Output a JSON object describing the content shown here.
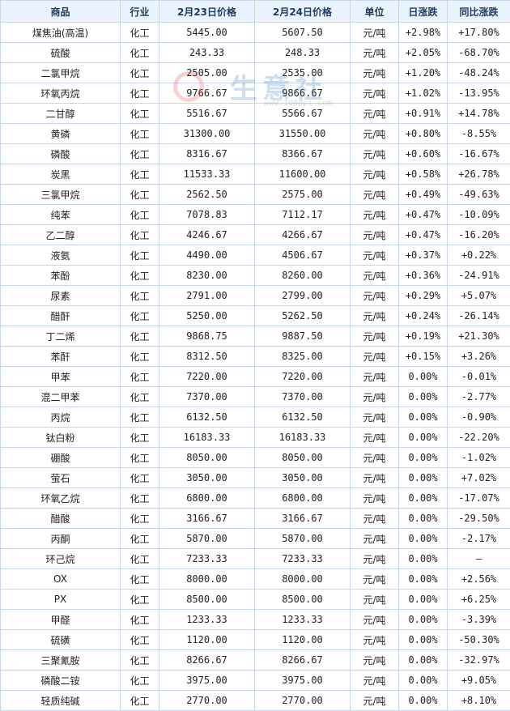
{
  "headers": {
    "name": "商品",
    "industry": "行业",
    "price_prev": "2月23日价格",
    "price_curr": "2月24日价格",
    "unit": "单位",
    "day_change": "日涨跌",
    "yoy_change": "同比涨跌"
  },
  "watermark": {
    "text": "生意社",
    "url": "www.100ppi.com"
  },
  "colors": {
    "up": "#e0202a",
    "down": "#1e9a38",
    "border": "#c7d7ea",
    "header_bg": "#eaf3fc",
    "link": "#2a5ea8"
  },
  "rows": [
    {
      "name": "煤焦油(高温)",
      "industry": "化工",
      "prev": "5445.00",
      "curr": "5607.50",
      "unit": "元/吨",
      "day": "+2.98%",
      "yoy": "+17.80%"
    },
    {
      "name": "硫酸",
      "industry": "化工",
      "prev": "243.33",
      "curr": "248.33",
      "unit": "元/吨",
      "day": "+2.05%",
      "yoy": "-68.70%"
    },
    {
      "name": "二氯甲烷",
      "industry": "化工",
      "prev": "2505.00",
      "curr": "2535.00",
      "unit": "元/吨",
      "day": "+1.20%",
      "yoy": "-48.24%"
    },
    {
      "name": "环氧丙烷",
      "industry": "化工",
      "prev": "9766.67",
      "curr": "9866.67",
      "unit": "元/吨",
      "day": "+1.02%",
      "yoy": "-13.95%"
    },
    {
      "name": "二甘醇",
      "industry": "化工",
      "prev": "5516.67",
      "curr": "5566.67",
      "unit": "元/吨",
      "day": "+0.91%",
      "yoy": "+14.78%"
    },
    {
      "name": "黄磷",
      "industry": "化工",
      "prev": "31300.00",
      "curr": "31550.00",
      "unit": "元/吨",
      "day": "+0.80%",
      "yoy": "-8.55%"
    },
    {
      "name": "磷酸",
      "industry": "化工",
      "prev": "8316.67",
      "curr": "8366.67",
      "unit": "元/吨",
      "day": "+0.60%",
      "yoy": "-16.67%"
    },
    {
      "name": "炭黑",
      "industry": "化工",
      "prev": "11533.33",
      "curr": "11600.00",
      "unit": "元/吨",
      "day": "+0.58%",
      "yoy": "+26.78%"
    },
    {
      "name": "三氯甲烷",
      "industry": "化工",
      "prev": "2562.50",
      "curr": "2575.00",
      "unit": "元/吨",
      "day": "+0.49%",
      "yoy": "-49.63%"
    },
    {
      "name": "纯苯",
      "industry": "化工",
      "prev": "7078.83",
      "curr": "7112.17",
      "unit": "元/吨",
      "day": "+0.47%",
      "yoy": "-10.09%"
    },
    {
      "name": "乙二醇",
      "industry": "化工",
      "prev": "4246.67",
      "curr": "4266.67",
      "unit": "元/吨",
      "day": "+0.47%",
      "yoy": "-16.20%"
    },
    {
      "name": "液氨",
      "industry": "化工",
      "prev": "4490.00",
      "curr": "4506.67",
      "unit": "元/吨",
      "day": "+0.37%",
      "yoy": "+0.22%"
    },
    {
      "name": "苯酚",
      "industry": "化工",
      "prev": "8230.00",
      "curr": "8260.00",
      "unit": "元/吨",
      "day": "+0.36%",
      "yoy": "-24.91%"
    },
    {
      "name": "尿素",
      "industry": "化工",
      "prev": "2791.00",
      "curr": "2799.00",
      "unit": "元/吨",
      "day": "+0.29%",
      "yoy": "+5.07%"
    },
    {
      "name": "醋酐",
      "industry": "化工",
      "prev": "5250.00",
      "curr": "5262.50",
      "unit": "元/吨",
      "day": "+0.24%",
      "yoy": "-26.14%"
    },
    {
      "name": "丁二烯",
      "industry": "化工",
      "prev": "9868.75",
      "curr": "9887.50",
      "unit": "元/吨",
      "day": "+0.19%",
      "yoy": "+21.30%"
    },
    {
      "name": "苯酐",
      "industry": "化工",
      "prev": "8312.50",
      "curr": "8325.00",
      "unit": "元/吨",
      "day": "+0.15%",
      "yoy": "+3.26%"
    },
    {
      "name": "甲苯",
      "industry": "化工",
      "prev": "7220.00",
      "curr": "7220.00",
      "unit": "元/吨",
      "day": "0.00%",
      "yoy": "-0.01%"
    },
    {
      "name": "混二甲苯",
      "industry": "化工",
      "prev": "7370.00",
      "curr": "7370.00",
      "unit": "元/吨",
      "day": "0.00%",
      "yoy": "-2.77%"
    },
    {
      "name": "丙烷",
      "industry": "化工",
      "prev": "6132.50",
      "curr": "6132.50",
      "unit": "元/吨",
      "day": "0.00%",
      "yoy": "-0.90%"
    },
    {
      "name": "钛白粉",
      "industry": "化工",
      "prev": "16183.33",
      "curr": "16183.33",
      "unit": "元/吨",
      "day": "0.00%",
      "yoy": "-22.20%"
    },
    {
      "name": "硼酸",
      "industry": "化工",
      "prev": "8050.00",
      "curr": "8050.00",
      "unit": "元/吨",
      "day": "0.00%",
      "yoy": "-1.02%"
    },
    {
      "name": "萤石",
      "industry": "化工",
      "prev": "3050.00",
      "curr": "3050.00",
      "unit": "元/吨",
      "day": "0.00%",
      "yoy": "+7.02%"
    },
    {
      "name": "环氧乙烷",
      "industry": "化工",
      "prev": "6800.00",
      "curr": "6800.00",
      "unit": "元/吨",
      "day": "0.00%",
      "yoy": "-17.07%"
    },
    {
      "name": "醋酸",
      "industry": "化工",
      "prev": "3166.67",
      "curr": "3166.67",
      "unit": "元/吨",
      "day": "0.00%",
      "yoy": "-29.50%"
    },
    {
      "name": "丙酮",
      "industry": "化工",
      "prev": "5870.00",
      "curr": "5870.00",
      "unit": "元/吨",
      "day": "0.00%",
      "yoy": "-2.17%"
    },
    {
      "name": "环己烷",
      "industry": "化工",
      "prev": "7233.33",
      "curr": "7233.33",
      "unit": "元/吨",
      "day": "0.00%",
      "yoy": "—"
    },
    {
      "name": "OX",
      "industry": "化工",
      "prev": "8000.00",
      "curr": "8000.00",
      "unit": "元/吨",
      "day": "0.00%",
      "yoy": "+2.56%"
    },
    {
      "name": "PX",
      "industry": "化工",
      "prev": "8500.00",
      "curr": "8500.00",
      "unit": "元/吨",
      "day": "0.00%",
      "yoy": "+6.25%"
    },
    {
      "name": "甲醛",
      "industry": "化工",
      "prev": "1233.33",
      "curr": "1233.33",
      "unit": "元/吨",
      "day": "0.00%",
      "yoy": "-3.39%"
    },
    {
      "name": "硫磺",
      "industry": "化工",
      "prev": "1120.00",
      "curr": "1120.00",
      "unit": "元/吨",
      "day": "0.00%",
      "yoy": "-50.30%"
    },
    {
      "name": "三聚氰胺",
      "industry": "化工",
      "prev": "8266.67",
      "curr": "8266.67",
      "unit": "元/吨",
      "day": "0.00%",
      "yoy": "-32.97%"
    },
    {
      "name": "磷酸二铵",
      "industry": "化工",
      "prev": "3975.00",
      "curr": "3975.00",
      "unit": "元/吨",
      "day": "0.00%",
      "yoy": "+9.05%"
    },
    {
      "name": "轻质纯碱",
      "industry": "化工",
      "prev": "2770.00",
      "curr": "2770.00",
      "unit": "元/吨",
      "day": "0.00%",
      "yoy": "+8.10%"
    }
  ]
}
